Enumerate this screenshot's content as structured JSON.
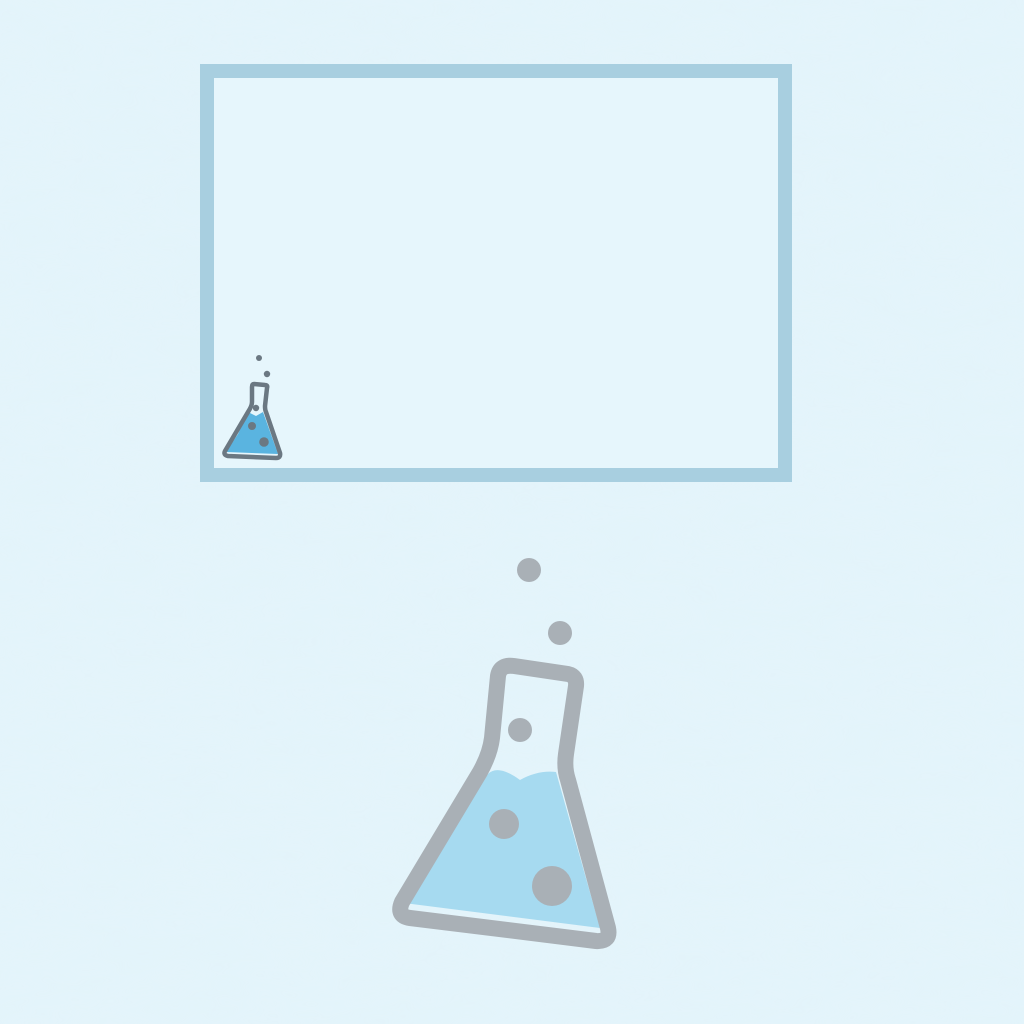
{
  "colors": {
    "background": "#e3f4fb",
    "frame_border": "#a8cfe0",
    "frame_fill": "#e6f6fc",
    "small_flask_outline": "#6b7882",
    "small_flask_liquid": "#5ab4e0",
    "big_flask_outline": "#a9b0b6",
    "big_flask_liquid": "#a6daf0"
  },
  "icons": {
    "small_flask": "flask-icon",
    "large_flask": "flask-icon"
  }
}
